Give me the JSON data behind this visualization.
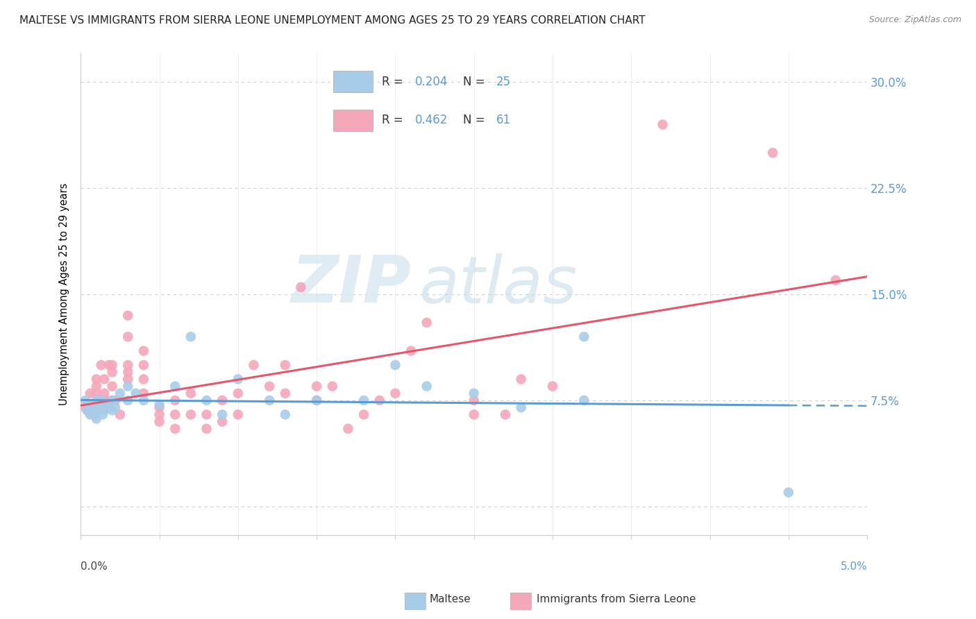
{
  "title": "MALTESE VS IMMIGRANTS FROM SIERRA LEONE UNEMPLOYMENT AMONG AGES 25 TO 29 YEARS CORRELATION CHART",
  "source": "Source: ZipAtlas.com",
  "ylabel": "Unemployment Among Ages 25 to 29 years",
  "legend_r1": "0.204",
  "legend_n1": "25",
  "legend_r2": "0.462",
  "legend_n2": "61",
  "legend_label1": "Maltese",
  "legend_label2": "Immigrants from Sierra Leone",
  "color_blue": "#a8cce8",
  "color_pink": "#f4a7b9",
  "color_blue_line": "#5b9bd5",
  "color_pink_line": "#e8546a",
  "watermark_zip": "ZIP",
  "watermark_atlas": "atlas",
  "xlim": [
    0.0,
    0.05
  ],
  "ylim": [
    -0.02,
    0.32
  ],
  "yticks": [
    0.0,
    0.075,
    0.15,
    0.225,
    0.3
  ],
  "ytick_labels": [
    "",
    "7.5%",
    "15.0%",
    "22.5%",
    "30.0%"
  ],
  "maltese_x": [
    0.0003,
    0.0004,
    0.0005,
    0.0006,
    0.0007,
    0.0008,
    0.0009,
    0.001,
    0.001,
    0.001,
    0.0012,
    0.0013,
    0.0014,
    0.0015,
    0.0016,
    0.0018,
    0.002,
    0.002,
    0.0022,
    0.0025,
    0.003,
    0.003,
    0.0035,
    0.004,
    0.005,
    0.006,
    0.007,
    0.008,
    0.009,
    0.01,
    0.012,
    0.013,
    0.015,
    0.018,
    0.02,
    0.022,
    0.025,
    0.028,
    0.032,
    0.032,
    0.045
  ],
  "maltese_y": [
    0.075,
    0.068,
    0.072,
    0.065,
    0.07,
    0.072,
    0.065,
    0.075,
    0.068,
    0.062,
    0.07,
    0.075,
    0.065,
    0.068,
    0.072,
    0.07,
    0.075,
    0.068,
    0.07,
    0.08,
    0.085,
    0.075,
    0.08,
    0.075,
    0.072,
    0.085,
    0.12,
    0.075,
    0.065,
    0.09,
    0.075,
    0.065,
    0.075,
    0.075,
    0.1,
    0.085,
    0.08,
    0.07,
    0.12,
    0.075,
    0.01
  ],
  "sierra_leone_x": [
    0.0003,
    0.0005,
    0.0006,
    0.0008,
    0.001,
    0.001,
    0.001,
    0.0012,
    0.0013,
    0.0015,
    0.0015,
    0.0016,
    0.0018,
    0.002,
    0.002,
    0.002,
    0.002,
    0.0022,
    0.0025,
    0.003,
    0.003,
    0.003,
    0.003,
    0.003,
    0.004,
    0.004,
    0.004,
    0.004,
    0.005,
    0.005,
    0.005,
    0.006,
    0.006,
    0.006,
    0.007,
    0.007,
    0.008,
    0.008,
    0.009,
    0.009,
    0.01,
    0.01,
    0.011,
    0.012,
    0.013,
    0.013,
    0.014,
    0.015,
    0.015,
    0.016,
    0.017,
    0.018,
    0.019,
    0.02,
    0.021,
    0.022,
    0.025,
    0.025,
    0.027,
    0.028,
    0.03,
    0.037,
    0.044,
    0.048
  ],
  "sierra_leone_y": [
    0.07,
    0.072,
    0.08,
    0.065,
    0.08,
    0.085,
    0.09,
    0.075,
    0.1,
    0.08,
    0.09,
    0.075,
    0.1,
    0.075,
    0.085,
    0.095,
    0.1,
    0.075,
    0.065,
    0.09,
    0.095,
    0.1,
    0.12,
    0.135,
    0.08,
    0.09,
    0.1,
    0.11,
    0.06,
    0.065,
    0.07,
    0.055,
    0.065,
    0.075,
    0.065,
    0.08,
    0.055,
    0.065,
    0.06,
    0.075,
    0.065,
    0.08,
    0.1,
    0.085,
    0.08,
    0.1,
    0.155,
    0.075,
    0.085,
    0.085,
    0.055,
    0.065,
    0.075,
    0.08,
    0.11,
    0.13,
    0.065,
    0.075,
    0.065,
    0.09,
    0.085,
    0.27,
    0.25,
    0.16
  ]
}
